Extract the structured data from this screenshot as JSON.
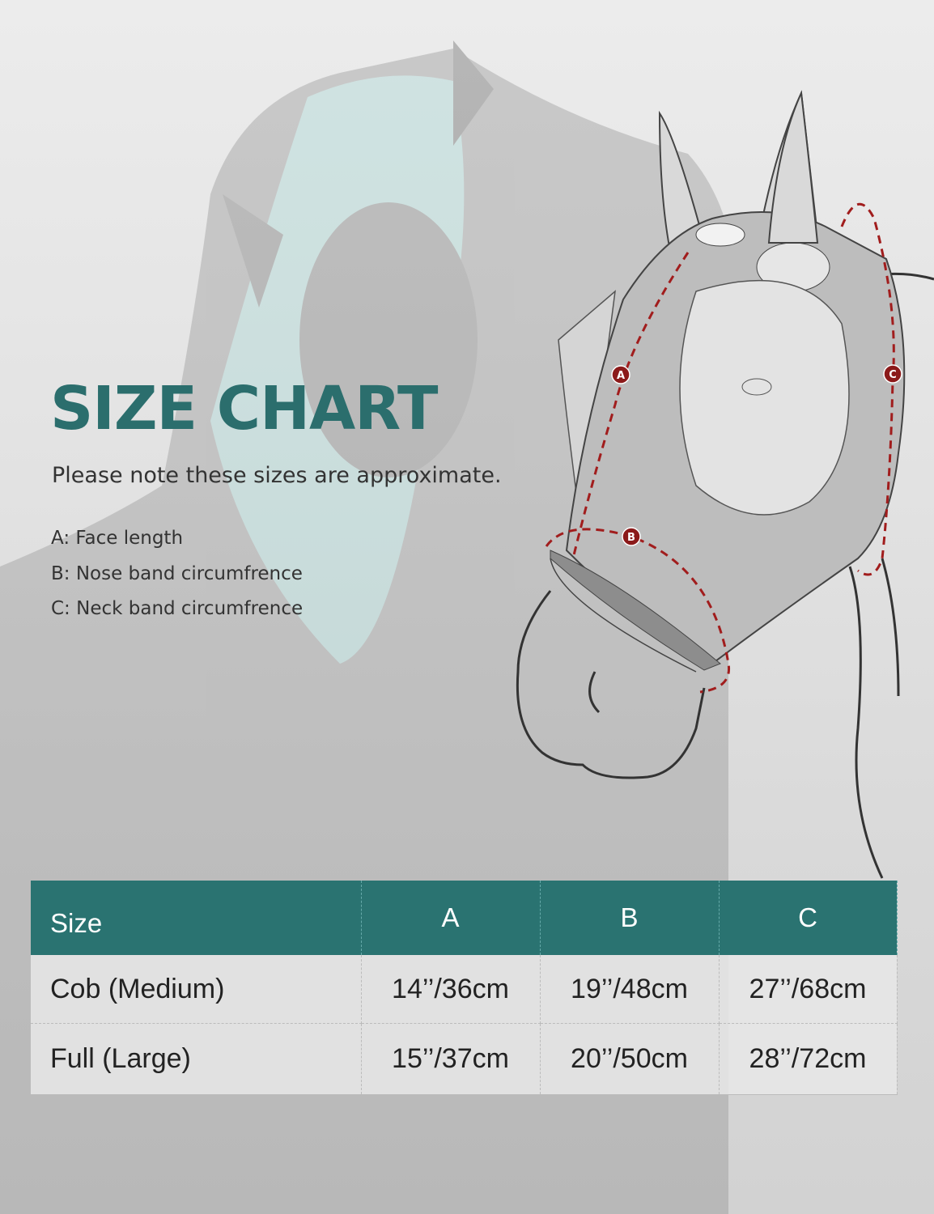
{
  "title": "SIZE CHART",
  "note": "Please note these sizes are approximate.",
  "legend": [
    "A: Face length",
    "B: Nose band circumfrence",
    "C: Neck band circumfrence"
  ],
  "diagram_markers": [
    "A",
    "B",
    "C"
  ],
  "table": {
    "headers": [
      "Size",
      "A",
      "B",
      "C"
    ],
    "rows": [
      [
        "Cob (Medium)",
        "14’’/36cm",
        "19’’/48cm",
        "27’’/68cm"
      ],
      [
        "Full (Large)",
        "15’’/37cm",
        "20’’/50cm",
        "28’’/72cm"
      ]
    ]
  },
  "colors": {
    "accent": "#2a7371",
    "marker": "#8b1a1a",
    "mask": "#bdbdbd"
  }
}
